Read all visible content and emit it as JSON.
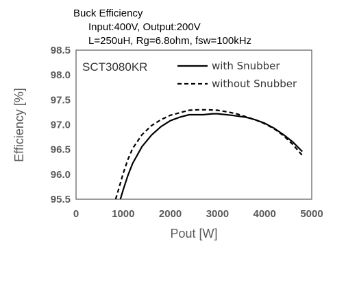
{
  "chart_data": {
    "type": "line",
    "title_lines": [
      "Buck Efficiency",
      "Input:400V, Output:200V",
      "L=250uH, Rg=6.8ohm,  fsw=100kHz"
    ],
    "annotation": "SCT3080KR",
    "xlabel": "Pout [W]",
    "ylabel": "Efficiency  [%]",
    "xlim": [
      0,
      5000
    ],
    "ylim": [
      95.5,
      98.5
    ],
    "x_ticks": [
      "0",
      "1000",
      "2000",
      "3000",
      "4000",
      "5000"
    ],
    "x_tick_values": [
      0,
      1000,
      2000,
      3000,
      4000,
      5000
    ],
    "y_ticks": [
      "95.5",
      "96.0",
      "96.5",
      "97.0",
      "97.5",
      "98.0",
      "98.5"
    ],
    "y_tick_values": [
      95.5,
      96.0,
      96.5,
      97.0,
      97.5,
      98.0,
      98.5
    ],
    "legend_position": "top-right",
    "series": [
      {
        "name": "with Snubber",
        "style": "solid",
        "x": [
          940,
          1000,
          1100,
          1200,
          1400,
          1600,
          1800,
          2000,
          2200,
          2400,
          2500,
          2700,
          2900,
          3000,
          3300,
          3600,
          3800,
          4000,
          4200,
          4400,
          4600,
          4800
        ],
        "y": [
          95.5,
          95.69,
          95.98,
          96.22,
          96.56,
          96.79,
          96.96,
          97.08,
          97.15,
          97.2,
          97.2,
          97.2,
          97.22,
          97.22,
          97.19,
          97.15,
          97.1,
          97.03,
          96.93,
          96.8,
          96.65,
          96.46
        ]
      },
      {
        "name": "without Snubber",
        "style": "dashed",
        "x": [
          840,
          900,
          1000,
          1100,
          1200,
          1400,
          1600,
          1800,
          2000,
          2200,
          2400,
          2600,
          2800,
          3000,
          3200,
          3400,
          3600,
          3800,
          4000,
          4200,
          4400,
          4600,
          4800
        ],
        "y": [
          95.5,
          95.69,
          96.02,
          96.3,
          96.52,
          96.8,
          96.98,
          97.1,
          97.19,
          97.24,
          97.29,
          97.3,
          97.3,
          97.29,
          97.26,
          97.22,
          97.16,
          97.1,
          97.02,
          96.92,
          96.78,
          96.6,
          96.38
        ]
      }
    ],
    "grid": false
  }
}
